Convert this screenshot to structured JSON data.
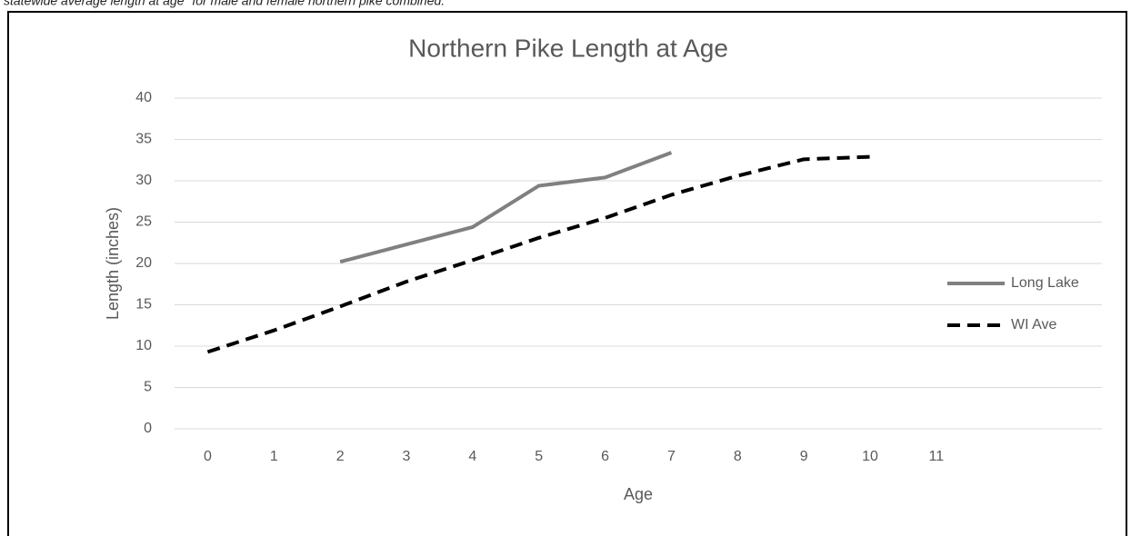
{
  "caption": "statewide average length at age\" for male and female northern pike combined.",
  "chart_data": {
    "type": "line",
    "title": "Northern Pike Length at Age",
    "x_label": "Age",
    "y_label": "Length (inches)",
    "categories": [
      0,
      1,
      2,
      3,
      4,
      5,
      6,
      7,
      8,
      9,
      10,
      11,
      null,
      null
    ],
    "series": [
      {
        "name": "Long Lake",
        "color": "#808080",
        "dash": false,
        "values": [
          null,
          null,
          20.2,
          22.3,
          24.4,
          29.4,
          30.4,
          33.4,
          null,
          null,
          null,
          null,
          null,
          null
        ]
      },
      {
        "name": "WI Ave",
        "color": "#000000",
        "dash": true,
        "values": [
          9.3,
          11.9,
          14.8,
          17.8,
          20.4,
          23.1,
          25.5,
          28.3,
          30.6,
          32.6,
          32.9,
          null,
          null,
          null
        ]
      }
    ],
    "ylim": [
      0,
      40
    ],
    "yticks": [
      0,
      5,
      10,
      15,
      20,
      25,
      30,
      35,
      40
    ],
    "grid": true,
    "legend": "right"
  }
}
